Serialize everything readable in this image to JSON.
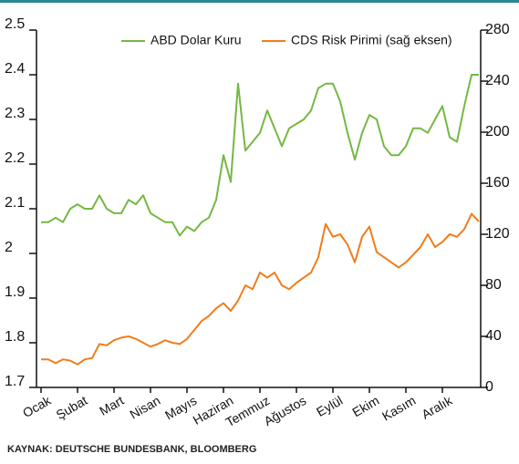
{
  "chart_data": {
    "type": "line",
    "source": "KAYNAK: DEUTSCHE BUNDESBANK, BLOOMBERG",
    "x": [
      0,
      0.2,
      0.4,
      0.6,
      0.8,
      1.0,
      1.2,
      1.4,
      1.6,
      1.8,
      2.0,
      2.2,
      2.4,
      2.6,
      2.8,
      3.0,
      3.2,
      3.4,
      3.6,
      3.8,
      4.0,
      4.2,
      4.4,
      4.6,
      4.8,
      5.0,
      5.2,
      5.4,
      5.6,
      5.8,
      6.0,
      6.2,
      6.4,
      6.6,
      6.8,
      7.0,
      7.2,
      7.4,
      7.6,
      7.8,
      8.0,
      8.2,
      8.4,
      8.6,
      8.8,
      9.0,
      9.2,
      9.4,
      9.6,
      9.8,
      10.0,
      10.2,
      10.4,
      10.6,
      10.8,
      11.0,
      11.2,
      11.4,
      11.6,
      11.8,
      12.0
    ],
    "xlim": [
      0,
      12
    ],
    "xticks": [
      {
        "value": 0,
        "label": "Ocak"
      },
      {
        "value": 1,
        "label": "Şubat"
      },
      {
        "value": 2,
        "label": "Mart"
      },
      {
        "value": 3,
        "label": "Nisan"
      },
      {
        "value": 4,
        "label": "Mayıs"
      },
      {
        "value": 5,
        "label": "Haziran"
      },
      {
        "value": 6,
        "label": "Temmuz"
      },
      {
        "value": 7,
        "label": "Ağustos"
      },
      {
        "value": 8,
        "label": "Eylül"
      },
      {
        "value": 9,
        "label": "Ekim"
      },
      {
        "value": 10,
        "label": "Kasım"
      },
      {
        "value": 11,
        "label": "Aralık"
      }
    ],
    "ylim": [
      1.7,
      2.5
    ],
    "yticks": [
      1.7,
      1.8,
      1.9,
      2,
      2.1,
      2.2,
      2.3,
      2.4,
      2.5
    ],
    "y2lim": [
      0,
      280
    ],
    "y2ticks": [
      0,
      40,
      80,
      120,
      160,
      200,
      240,
      280
    ],
    "series": [
      {
        "name": "ABD Dolar Kuru",
        "color": "#74b843",
        "values": [
          2.07,
          2.07,
          2.08,
          2.07,
          2.1,
          2.11,
          2.1,
          2.1,
          2.13,
          2.1,
          2.09,
          2.09,
          2.12,
          2.11,
          2.13,
          2.09,
          2.08,
          2.07,
          2.07,
          2.04,
          2.06,
          2.05,
          2.07,
          2.08,
          2.12,
          2.22,
          2.16,
          2.38,
          2.23,
          2.25,
          2.27,
          2.32,
          2.28,
          2.24,
          2.28,
          2.29,
          2.3,
          2.32,
          2.37,
          2.38,
          2.38,
          2.34,
          2.27,
          2.21,
          2.27,
          2.31,
          2.3,
          2.24,
          2.22,
          2.22,
          2.24,
          2.28,
          2.28,
          2.27,
          2.3,
          2.33,
          2.26,
          2.25,
          2.33,
          2.4,
          2.4
        ]
      },
      {
        "name": "CDS Risk Pirimi (sağ eksen)",
        "color": "#f07d1c",
        "axis": "y2",
        "values": [
          22,
          22,
          19,
          22,
          21,
          18,
          22,
          23,
          34,
          33,
          37,
          39,
          40,
          38,
          35,
          32,
          34,
          37,
          35,
          34,
          38,
          45,
          52,
          56,
          62,
          66,
          60,
          68,
          80,
          77,
          90,
          86,
          90,
          80,
          77,
          82,
          86,
          90,
          102,
          128,
          118,
          120,
          112,
          98,
          118,
          126,
          106,
          102,
          98,
          94,
          98,
          104,
          110,
          120,
          110,
          114,
          120,
          118,
          124,
          136,
          130
        ]
      }
    ]
  }
}
